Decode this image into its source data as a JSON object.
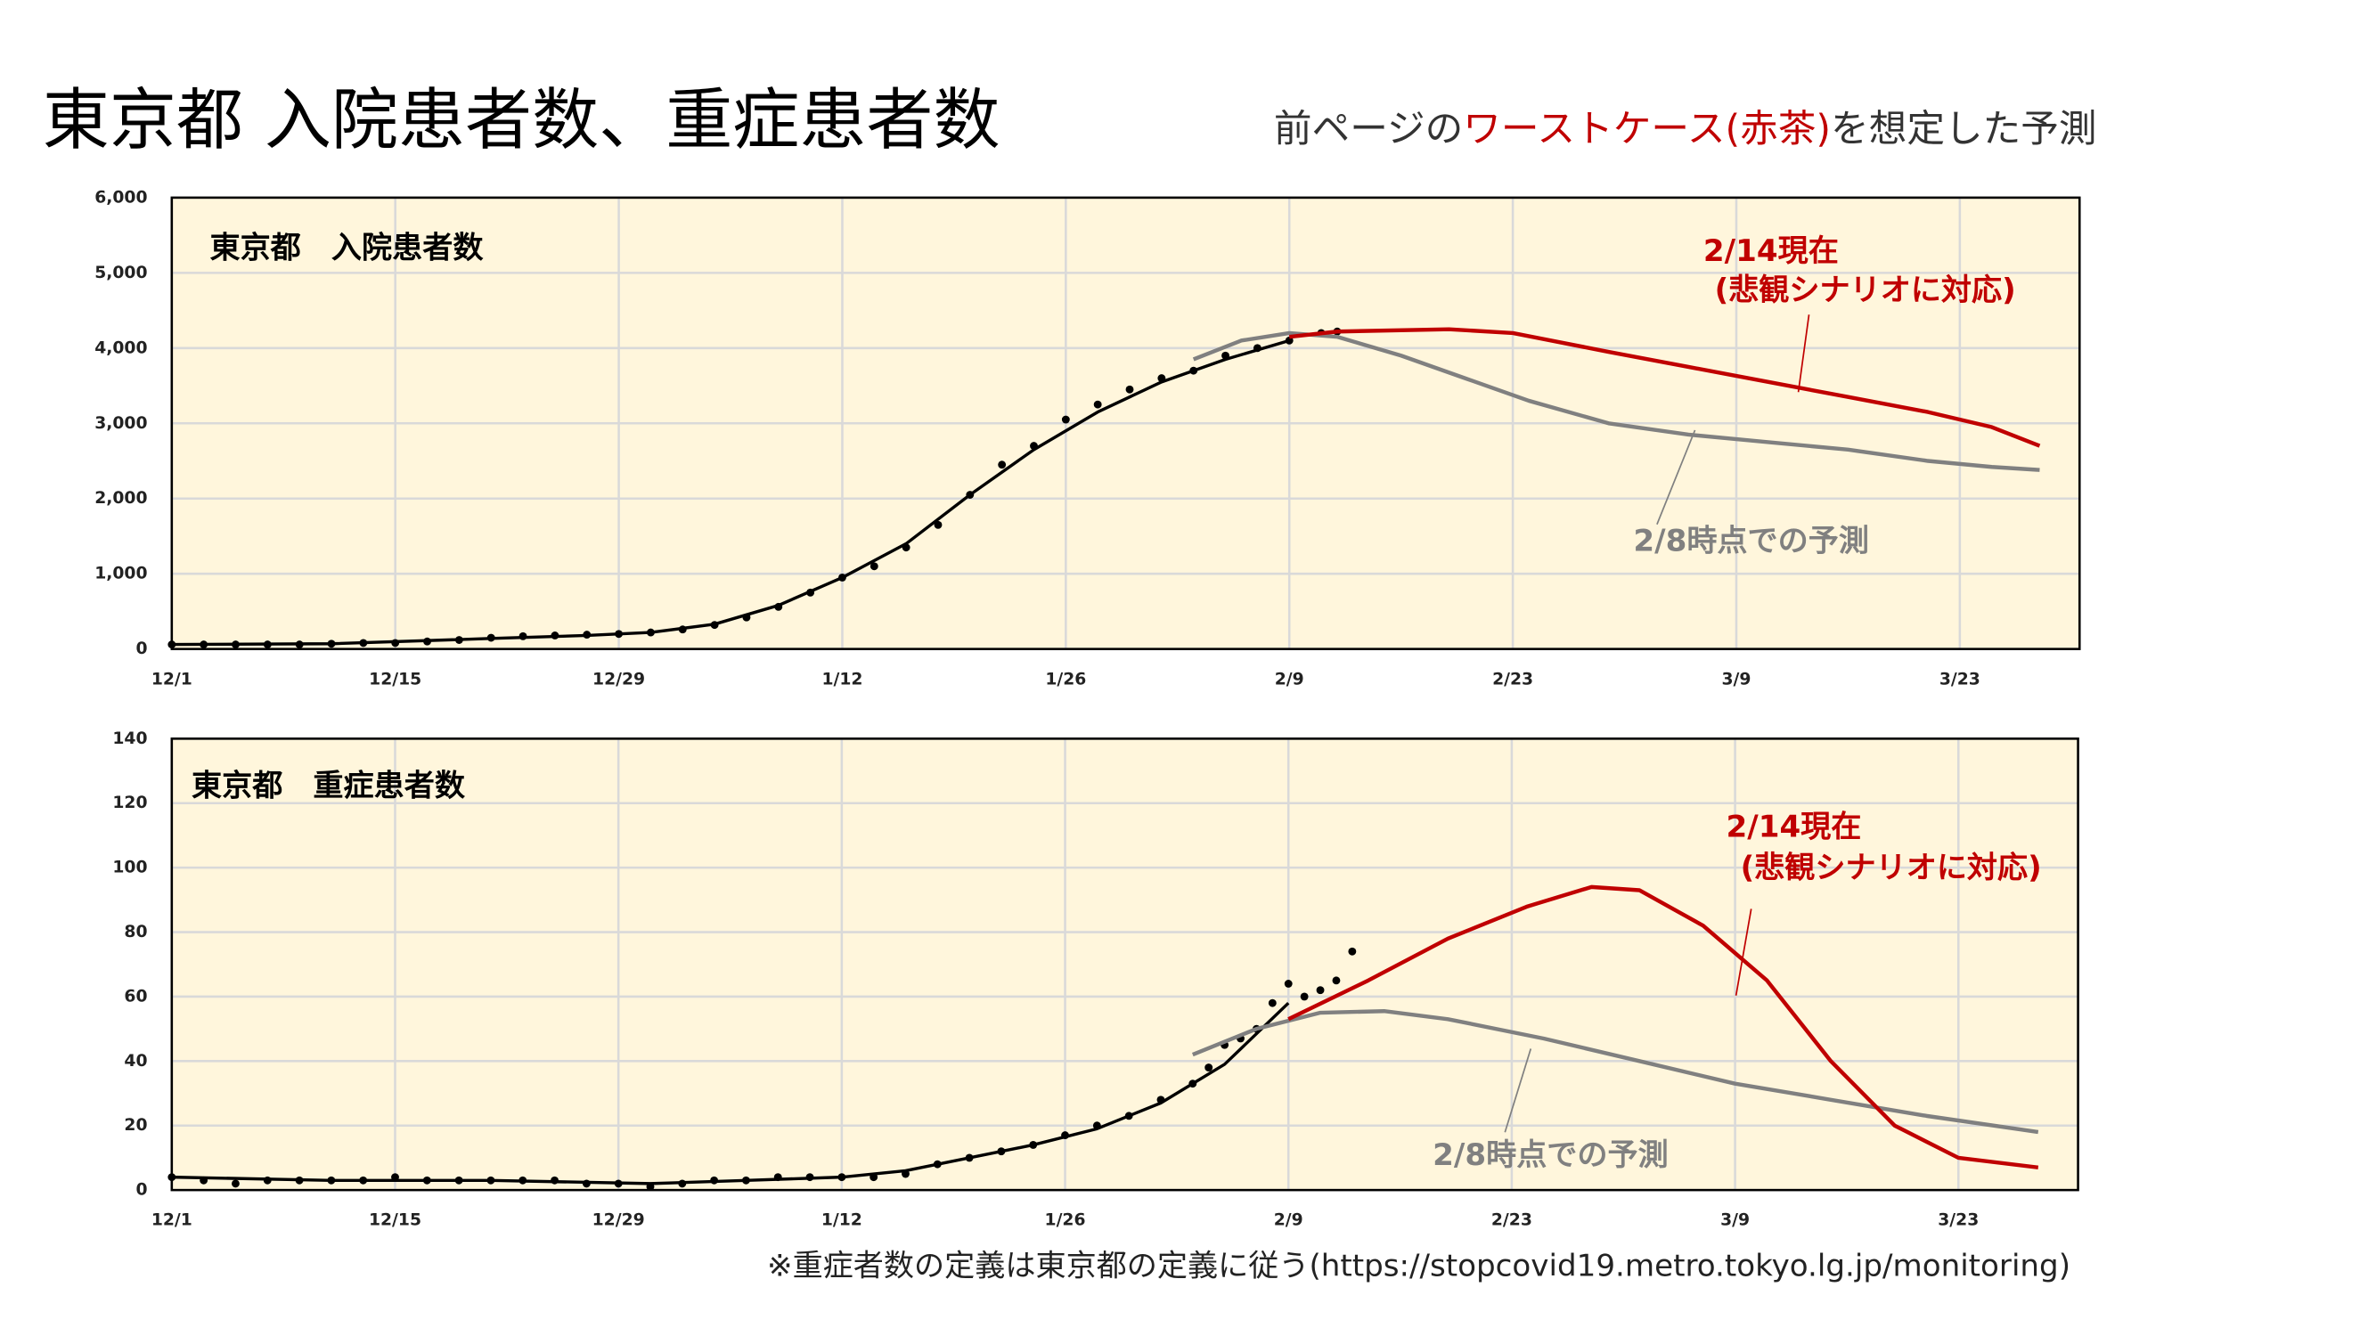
{
  "title": "東京都 入院患者数、重症患者数",
  "subtitle": {
    "parts": [
      "前ページの",
      "ワーストケース(赤茶)",
      "を想定した予測"
    ],
    "highlight_color": "#c00000"
  },
  "footnote": "※重症者数の定義は東京都の定義に従う(https://stopcovid19.metro.tokyo.lg.jp/monitoring)",
  "chart_data": [
    {
      "type": "line",
      "title": "東京都　入院患者数",
      "background": "#fff6dc",
      "grid": true,
      "xlim": [
        0,
        119.5
      ],
      "xticks": [
        {
          "value": 0,
          "label": "12/1"
        },
        {
          "value": 14,
          "label": "12/15"
        },
        {
          "value": 28,
          "label": "12/29"
        },
        {
          "value": 42,
          "label": "1/12"
        },
        {
          "value": 56,
          "label": "1/26"
        },
        {
          "value": 70,
          "label": "2/9"
        },
        {
          "value": 84,
          "label": "2/23"
        },
        {
          "value": 98,
          "label": "3/9"
        },
        {
          "value": 112,
          "label": "3/23"
        }
      ],
      "ylim": [
        0,
        6000
      ],
      "yticks": [
        0,
        {
          "value": 1000,
          "label": "1,000"
        },
        {
          "value": 2000,
          "label": "2,000"
        },
        {
          "value": 3000,
          "label": "3,000"
        },
        {
          "value": 4000,
          "label": "4,000"
        },
        {
          "value": 5000,
          "label": "5,000"
        },
        {
          "value": 6000,
          "label": "6,000"
        }
      ],
      "series": [
        {
          "marker": "dot",
          "color": "#000000",
          "x": [
            0,
            2,
            4,
            6,
            8,
            10,
            12,
            14,
            16,
            18,
            20,
            22,
            24,
            26,
            28,
            30,
            32,
            34,
            36,
            38,
            40,
            42,
            44,
            46,
            48,
            50,
            52,
            54,
            56,
            58,
            60,
            62,
            64,
            66,
            68,
            70,
            72,
            73
          ],
          "values": [
            60,
            60,
            60,
            60,
            60,
            70,
            80,
            80,
            100,
            120,
            150,
            170,
            180,
            190,
            200,
            220,
            260,
            320,
            420,
            560,
            750,
            950,
            1100,
            1350,
            1650,
            2050,
            2450,
            2700,
            3050,
            3250,
            3450,
            3600,
            3700,
            3900,
            4000,
            4100,
            4200,
            4220
          ]
        },
        {
          "marker": "line",
          "color": "#000000",
          "x": [
            0,
            10,
            20,
            26,
            30,
            34,
            38,
            42,
            46,
            50,
            54,
            58,
            62,
            66,
            70
          ],
          "values": [
            60,
            70,
            140,
            180,
            220,
            330,
            580,
            950,
            1400,
            2050,
            2650,
            3150,
            3550,
            3850,
            4100
          ]
        },
        {
          "marker": "line",
          "color": "#808080",
          "x": [
            64,
            67,
            70,
            73,
            77,
            81,
            85,
            90,
            95,
            100,
            105,
            110,
            114,
            117
          ],
          "values": [
            3850,
            4100,
            4200,
            4150,
            3900,
            3600,
            3300,
            3000,
            2850,
            2750,
            2650,
            2500,
            2420,
            2380
          ]
        },
        {
          "marker": "line",
          "color": "#c00000",
          "x": [
            70,
            73,
            80,
            84,
            90,
            95,
            100,
            105,
            110,
            114,
            117
          ],
          "values": [
            4150,
            4220,
            4250,
            4200,
            3950,
            3750,
            3550,
            3350,
            3150,
            2950,
            2700
          ]
        }
      ],
      "annotations": [
        {
          "text": "2/14現在",
          "color": "#c00000"
        },
        {
          "text": "(悲観シナリオに対応)",
          "color": "#c00000"
        },
        {
          "text": "2/8時点での予測",
          "color": "#808080"
        }
      ]
    },
    {
      "type": "line",
      "title": "東京都　重症患者数",
      "background": "#fff6dc",
      "grid": true,
      "xlim": [
        0,
        119.5
      ],
      "xticks": [
        {
          "value": 0,
          "label": "12/1"
        },
        {
          "value": 14,
          "label": "12/15"
        },
        {
          "value": 28,
          "label": "12/29"
        },
        {
          "value": 42,
          "label": "1/12"
        },
        {
          "value": 56,
          "label": "1/26"
        },
        {
          "value": 70,
          "label": "2/9"
        },
        {
          "value": 84,
          "label": "2/23"
        },
        {
          "value": 98,
          "label": "3/9"
        },
        {
          "value": 112,
          "label": "3/23"
        }
      ],
      "ylim": [
        0,
        140
      ],
      "yticks": [
        0,
        20,
        40,
        60,
        80,
        100,
        120,
        140
      ],
      "series": [
        {
          "marker": "dot",
          "color": "#000000",
          "x": [
            0,
            2,
            4,
            6,
            8,
            10,
            12,
            14,
            16,
            18,
            20,
            22,
            24,
            26,
            28,
            30,
            32,
            34,
            36,
            38,
            40,
            42,
            44,
            46,
            48,
            50,
            52,
            54,
            56,
            58,
            60,
            62,
            64,
            65,
            66,
            67,
            68,
            69,
            70,
            71,
            72,
            73,
            74
          ],
          "values": [
            4,
            3,
            2,
            3,
            3,
            3,
            3,
            4,
            3,
            3,
            3,
            3,
            3,
            2,
            2,
            1,
            2,
            3,
            3,
            4,
            4,
            4,
            4,
            5,
            8,
            10,
            12,
            14,
            17,
            20,
            23,
            28,
            33,
            38,
            45,
            47,
            50,
            58,
            64,
            60,
            62,
            65,
            74
          ]
        },
        {
          "marker": "line",
          "color": "#000000",
          "x": [
            0,
            10,
            20,
            30,
            36,
            42,
            46,
            50,
            54,
            58,
            62,
            66,
            70
          ],
          "values": [
            4,
            3,
            3,
            2,
            3,
            4,
            6,
            10,
            14,
            19,
            27,
            39,
            58
          ]
        },
        {
          "marker": "line",
          "color": "#808080",
          "x": [
            64,
            68,
            72,
            76,
            80,
            86,
            92,
            98,
            104,
            110,
            117
          ],
          "values": [
            42,
            50,
            55,
            55.5,
            53,
            47,
            40,
            33,
            28,
            23,
            18
          ]
        },
        {
          "marker": "line",
          "color": "#c00000",
          "x": [
            70,
            75,
            80,
            85,
            89,
            92,
            96,
            100,
            104,
            108,
            112,
            117
          ],
          "values": [
            53,
            65,
            78,
            88,
            94,
            93,
            82,
            65,
            40,
            20,
            10,
            7
          ]
        }
      ],
      "annotations": [
        {
          "text": "2/14現在",
          "color": "#c00000"
        },
        {
          "text": "(悲観シナリオに対応)",
          "color": "#c00000"
        },
        {
          "text": "2/8時点での予測",
          "color": "#808080"
        }
      ]
    }
  ]
}
